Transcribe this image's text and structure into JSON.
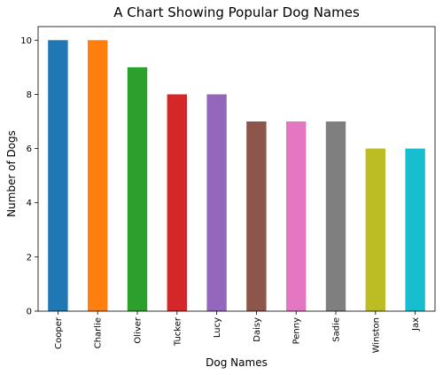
{
  "chart_data": {
    "type": "bar",
    "title": "A Chart Showing Popular Dog Names",
    "xlabel": "Dog Names",
    "ylabel": "Number of Dogs",
    "categories": [
      "Cooper",
      "Charlie",
      "Oliver",
      "Tucker",
      "Lucy",
      "Daisy",
      "Penny",
      "Sadie",
      "Winston",
      "Jax"
    ],
    "values": [
      10,
      10,
      9,
      8,
      8,
      7,
      7,
      7,
      6,
      6
    ],
    "colors": [
      "#1f77b4",
      "#ff7f0e",
      "#2ca02c",
      "#d62728",
      "#9467bd",
      "#8c564b",
      "#e377c2",
      "#7f7f7f",
      "#bcbd22",
      "#17becf"
    ],
    "ylim": [
      0,
      10.5
    ],
    "yticks": [
      0,
      2,
      4,
      6,
      8,
      10
    ],
    "grid": false,
    "legend": "none"
  }
}
